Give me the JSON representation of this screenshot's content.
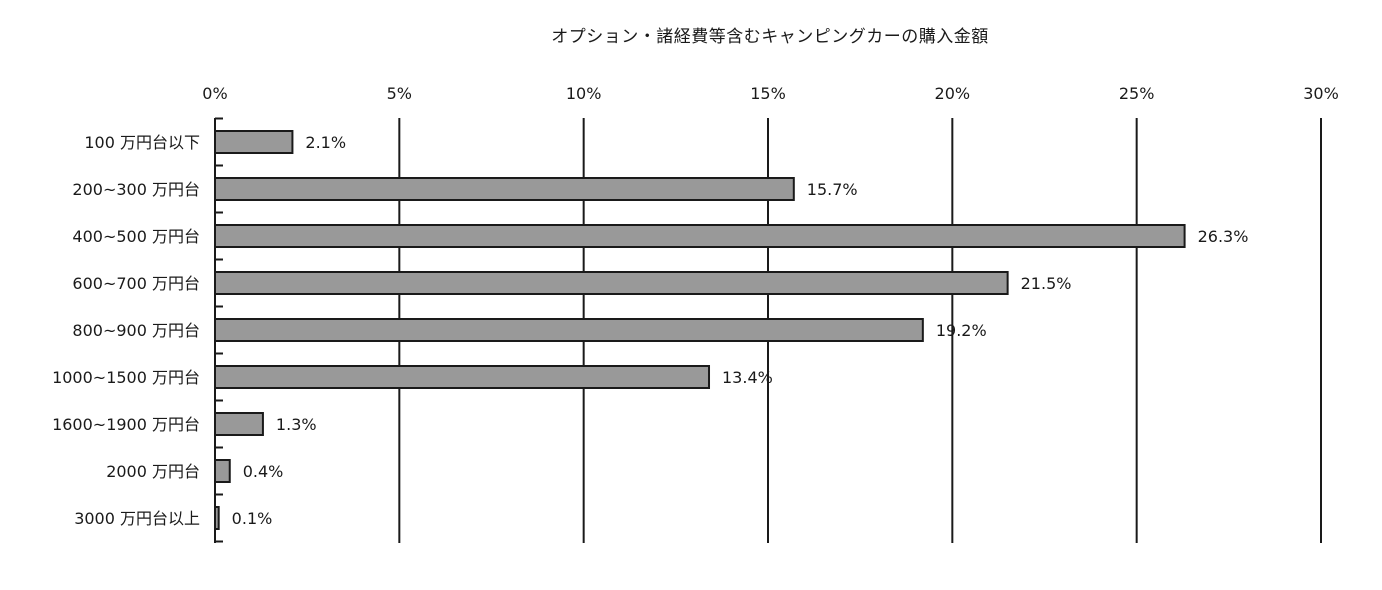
{
  "chart_data": {
    "type": "bar",
    "orientation": "horizontal",
    "title": "オプション・諸経費等含むキャンピングカーの購入金額",
    "categories": [
      "100 万円台以下",
      "200~300 万円台",
      "400~500 万円台",
      "600~700 万円台",
      "800~900 万円台",
      "1000~1500 万円台",
      "1600~1900 万円台",
      "2000 万円台",
      "3000 万円台以上"
    ],
    "values": [
      2.1,
      15.7,
      26.3,
      21.5,
      19.2,
      13.4,
      1.3,
      0.4,
      0.1
    ],
    "value_labels": [
      "2.1%",
      "15.7%",
      "26.3%",
      "21.5%",
      "19.2%",
      "13.4%",
      "1.3%",
      "0.4%",
      "0.1%"
    ],
    "xlim": [
      0,
      30
    ],
    "x_ticks": [
      0,
      5,
      10,
      15,
      20,
      25,
      30
    ],
    "x_tick_labels": [
      "0%",
      "5%",
      "10%",
      "15%",
      "20%",
      "25%",
      "30%"
    ],
    "xlabel": "",
    "ylabel": "",
    "x_axis_position": "top",
    "grid": true,
    "bar_color": "#999999",
    "bar_edge_color": "#1a1a1a"
  }
}
